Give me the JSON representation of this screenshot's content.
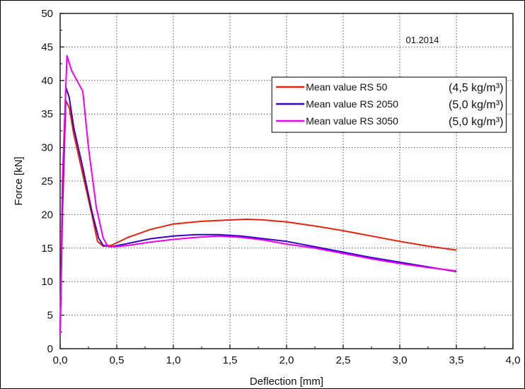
{
  "chart_data": {
    "type": "line",
    "title": "",
    "xlabel": "Deflection [mm]",
    "ylabel": "Force [kN]",
    "xlim": [
      0,
      4.0
    ],
    "ylim": [
      0,
      50
    ],
    "grid": true,
    "legend_position": "upper-right",
    "x_ticks": [
      "0,0",
      "0,5",
      "1,0",
      "1,5",
      "2,0",
      "2,5",
      "3,0",
      "3,5",
      "4,0"
    ],
    "y_ticks": [
      "0",
      "5",
      "10",
      "15",
      "20",
      "25",
      "30",
      "35",
      "40",
      "45",
      "50"
    ],
    "annotation": "01.2014",
    "series": [
      {
        "name": "Mean value RS 50",
        "unit_label": "(4,5 kg/m³)",
        "color": "#e8200c",
        "points": [
          [
            0,
            2
          ],
          [
            0.02,
            20
          ],
          [
            0.05,
            37
          ],
          [
            0.08,
            36
          ],
          [
            0.12,
            32
          ],
          [
            0.2,
            26
          ],
          [
            0.28,
            20
          ],
          [
            0.33,
            16
          ],
          [
            0.38,
            15.3
          ],
          [
            0.45,
            15.4
          ],
          [
            0.6,
            16.6
          ],
          [
            0.8,
            17.8
          ],
          [
            1.0,
            18.6
          ],
          [
            1.25,
            19.0
          ],
          [
            1.5,
            19.2
          ],
          [
            1.65,
            19.3
          ],
          [
            1.8,
            19.2
          ],
          [
            2.0,
            18.9
          ],
          [
            2.25,
            18.3
          ],
          [
            2.5,
            17.6
          ],
          [
            2.75,
            16.8
          ],
          [
            3.0,
            16.0
          ],
          [
            3.25,
            15.3
          ],
          [
            3.5,
            14.7
          ]
        ]
      },
      {
        "name": "Mean value RS 2050",
        "unit_label": "(5,0 kg/m³)",
        "color": "#3300cc",
        "points": [
          [
            0,
            2
          ],
          [
            0.02,
            22
          ],
          [
            0.05,
            39
          ],
          [
            0.08,
            37.5
          ],
          [
            0.12,
            33
          ],
          [
            0.2,
            27
          ],
          [
            0.28,
            20.5
          ],
          [
            0.34,
            16.5
          ],
          [
            0.38,
            15.4
          ],
          [
            0.45,
            15.2
          ],
          [
            0.6,
            15.7
          ],
          [
            0.8,
            16.4
          ],
          [
            1.0,
            16.8
          ],
          [
            1.2,
            17.0
          ],
          [
            1.4,
            17.0
          ],
          [
            1.6,
            16.8
          ],
          [
            1.8,
            16.4
          ],
          [
            2.0,
            16.0
          ],
          [
            2.25,
            15.2
          ],
          [
            2.5,
            14.4
          ],
          [
            2.75,
            13.6
          ],
          [
            3.0,
            12.9
          ],
          [
            3.25,
            12.2
          ],
          [
            3.5,
            11.5
          ]
        ]
      },
      {
        "name": "Mean value RS 3050",
        "unit_label": "(5,0 kg/m³)",
        "color": "#ee00ee",
        "points": [
          [
            0,
            2
          ],
          [
            0.02,
            25
          ],
          [
            0.06,
            43.7
          ],
          [
            0.1,
            41.5
          ],
          [
            0.2,
            38.4
          ],
          [
            0.25,
            30
          ],
          [
            0.32,
            21
          ],
          [
            0.38,
            16.5
          ],
          [
            0.42,
            15.3
          ],
          [
            0.48,
            15.2
          ],
          [
            0.6,
            15.4
          ],
          [
            0.8,
            15.9
          ],
          [
            1.0,
            16.3
          ],
          [
            1.2,
            16.6
          ],
          [
            1.4,
            16.8
          ],
          [
            1.6,
            16.6
          ],
          [
            1.8,
            16.2
          ],
          [
            2.0,
            15.6
          ],
          [
            2.25,
            15.0
          ],
          [
            2.5,
            14.2
          ],
          [
            2.75,
            13.4
          ],
          [
            3.0,
            12.7
          ],
          [
            3.25,
            12.1
          ],
          [
            3.5,
            11.6
          ]
        ]
      }
    ]
  }
}
